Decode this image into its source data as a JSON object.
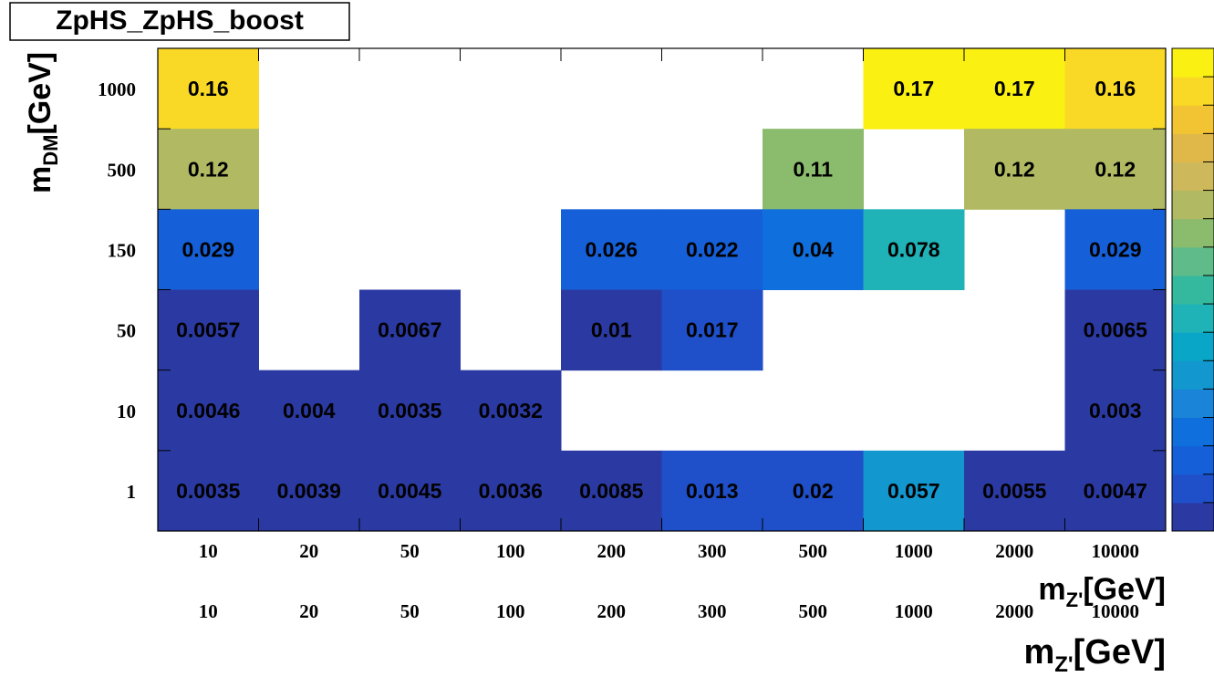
{
  "chart_data": {
    "type": "heatmap",
    "title": "ZpHS_ZpHS_boost",
    "x_categories": [
      "10",
      "20",
      "50",
      "100",
      "200",
      "300",
      "500",
      "1000",
      "2000",
      "10000"
    ],
    "y_categories": [
      "1",
      "10",
      "50",
      "150",
      "500",
      "1000"
    ],
    "xlabel_main": "m",
    "xlabel_sub": "Z'",
    "xlabel_unit": "[GeV]",
    "ylabel_main": "m",
    "ylabel_sub": "DM",
    "ylabel_unit": "[GeV]",
    "cells": [
      {
        "x": "10",
        "y": "1000",
        "value": 0.16,
        "label": "0.16"
      },
      {
        "x": "1000",
        "y": "1000",
        "value": 0.17,
        "label": "0.17"
      },
      {
        "x": "2000",
        "y": "1000",
        "value": 0.17,
        "label": "0.17"
      },
      {
        "x": "10000",
        "y": "1000",
        "value": 0.16,
        "label": "0.16"
      },
      {
        "x": "10",
        "y": "500",
        "value": 0.12,
        "label": "0.12"
      },
      {
        "x": "500",
        "y": "500",
        "value": 0.11,
        "label": "0.11"
      },
      {
        "x": "2000",
        "y": "500",
        "value": 0.12,
        "label": "0.12"
      },
      {
        "x": "10000",
        "y": "500",
        "value": 0.12,
        "label": "0.12"
      },
      {
        "x": "10",
        "y": "150",
        "value": 0.029,
        "label": "0.029"
      },
      {
        "x": "200",
        "y": "150",
        "value": 0.026,
        "label": "0.026"
      },
      {
        "x": "300",
        "y": "150",
        "value": 0.022,
        "label": "0.022"
      },
      {
        "x": "500",
        "y": "150",
        "value": 0.04,
        "label": "0.04"
      },
      {
        "x": "1000",
        "y": "150",
        "value": 0.078,
        "label": "0.078"
      },
      {
        "x": "10000",
        "y": "150",
        "value": 0.029,
        "label": "0.029"
      },
      {
        "x": "10",
        "y": "50",
        "value": 0.0057,
        "label": "0.0057"
      },
      {
        "x": "50",
        "y": "50",
        "value": 0.0067,
        "label": "0.0067"
      },
      {
        "x": "200",
        "y": "50",
        "value": 0.01,
        "label": "0.01"
      },
      {
        "x": "300",
        "y": "50",
        "value": 0.017,
        "label": "0.017"
      },
      {
        "x": "10000",
        "y": "50",
        "value": 0.0065,
        "label": "0.0065"
      },
      {
        "x": "10",
        "y": "10",
        "value": 0.0046,
        "label": "0.0046"
      },
      {
        "x": "20",
        "y": "10",
        "value": 0.004,
        "label": "0.004"
      },
      {
        "x": "50",
        "y": "10",
        "value": 0.0035,
        "label": "0.0035"
      },
      {
        "x": "100",
        "y": "10",
        "value": 0.0032,
        "label": "0.0032"
      },
      {
        "x": "10000",
        "y": "10",
        "value": 0.003,
        "label": "0.003"
      },
      {
        "x": "10",
        "y": "1",
        "value": 0.0035,
        "label": "0.0035"
      },
      {
        "x": "20",
        "y": "1",
        "value": 0.0039,
        "label": "0.0039"
      },
      {
        "x": "50",
        "y": "1",
        "value": 0.0045,
        "label": "0.0045"
      },
      {
        "x": "100",
        "y": "1",
        "value": 0.0036,
        "label": "0.0036"
      },
      {
        "x": "200",
        "y": "1",
        "value": 0.0085,
        "label": "0.0085"
      },
      {
        "x": "300",
        "y": "1",
        "value": 0.013,
        "label": "0.013"
      },
      {
        "x": "500",
        "y": "1",
        "value": 0.02,
        "label": "0.02"
      },
      {
        "x": "1000",
        "y": "1",
        "value": 0.057,
        "label": "0.057"
      },
      {
        "x": "2000",
        "y": "1",
        "value": 0.0055,
        "label": "0.0055"
      },
      {
        "x": "10000",
        "y": "1",
        "value": 0.0047,
        "label": "0.0047"
      }
    ],
    "z_range": [
      0,
      0.175
    ],
    "palette": [
      "#2b3aa3",
      "#1f4fc9",
      "#1560d8",
      "#0f6fdc",
      "#1a84d8",
      "#1297cf",
      "#0aa6c8",
      "#1fb3b8",
      "#35b99e",
      "#5fbc8a",
      "#8bbb6c",
      "#b1ba62",
      "#cdb85c",
      "#e0b84a",
      "#f2c434",
      "#f9d926",
      "#faf012"
    ],
    "legend": "right"
  }
}
